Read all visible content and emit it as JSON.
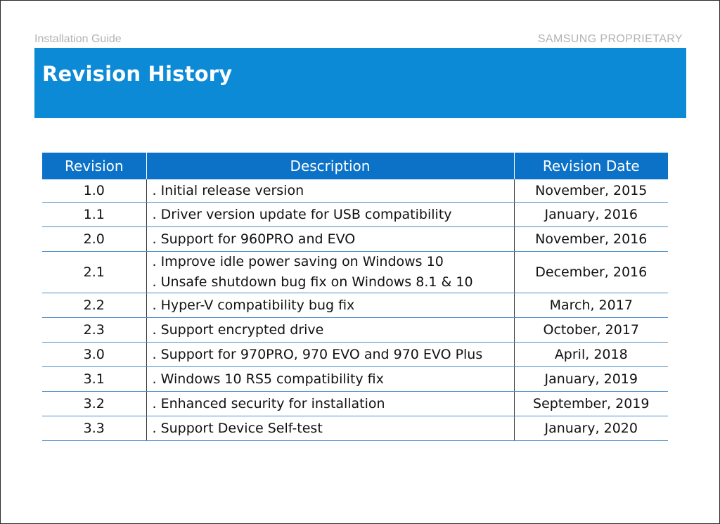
{
  "header": {
    "left": "Installation Guide",
    "right": "SAMSUNG PROPRIETARY"
  },
  "title": "Revision History",
  "colors": {
    "title_band": "#0c8ad6",
    "table_header": "#0c72c7",
    "header_text": "#b3b3b3",
    "row_divider": "#4c8ec9"
  },
  "table": {
    "columns": [
      "Revision",
      "Description",
      "Revision Date"
    ],
    "rows": [
      {
        "revision": "1.0",
        "description": [
          ". Initial release version"
        ],
        "date": "November, 2015"
      },
      {
        "revision": "1.1",
        "description": [
          ". Driver version update for USB compatibility"
        ],
        "date": "January, 2016"
      },
      {
        "revision": "2.0",
        "description": [
          ". Support for 960PRO and EVO"
        ],
        "date": "November, 2016"
      },
      {
        "revision": "2.1",
        "description": [
          ". Improve idle power saving on Windows 10",
          ". Unsafe shutdown bug fix on Windows 8.1 & 10"
        ],
        "date": "December, 2016"
      },
      {
        "revision": "2.2",
        "description": [
          ". Hyper-V compatibility bug fix"
        ],
        "date": "March, 2017"
      },
      {
        "revision": "2.3",
        "description": [
          ". Support encrypted drive"
        ],
        "date": "October, 2017"
      },
      {
        "revision": "3.0",
        "description": [
          ". Support for 970PRO, 970 EVO and 970 EVO Plus"
        ],
        "date": "April, 2018"
      },
      {
        "revision": "3.1",
        "description": [
          ". Windows 10 RS5 compatibility fix"
        ],
        "date": "January, 2019"
      },
      {
        "revision": "3.2",
        "description": [
          ". Enhanced security for installation"
        ],
        "date": "September, 2019"
      },
      {
        "revision": "3.3",
        "description": [
          ". Support Device Self-test"
        ],
        "date": "January, 2020"
      }
    ]
  }
}
